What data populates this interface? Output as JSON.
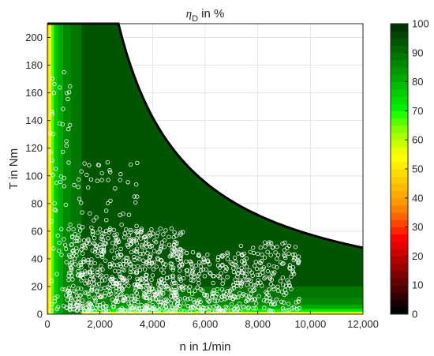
{
  "chart_data": {
    "type": "heatmap",
    "title_main": "η",
    "title_sub": "D",
    "title_rest": " in %",
    "xlabel": "n in 1/min",
    "ylabel": "T in Nm",
    "xlim": [
      0,
      12000
    ],
    "ylim": [
      0,
      210
    ],
    "xticks": [
      0,
      2000,
      4000,
      6000,
      8000,
      10000,
      12000
    ],
    "xtick_labels": [
      "0",
      "2,000",
      "4,000",
      "6,000",
      "8,000",
      "10,000",
      "12,000"
    ],
    "yticks": [
      0,
      20,
      40,
      60,
      80,
      100,
      120,
      140,
      160,
      180,
      200
    ],
    "ytick_labels": [
      "0",
      "20",
      "40",
      "60",
      "80",
      "100",
      "120",
      "140",
      "160",
      "180",
      "200"
    ],
    "grid": true,
    "colorbar": {
      "min": 0,
      "max": 100,
      "ticks": [
        0,
        10,
        20,
        30,
        40,
        50,
        60,
        70,
        80,
        90,
        100
      ],
      "tick_labels": [
        "0",
        "10",
        "20",
        "30",
        "40",
        "50",
        "60",
        "70",
        "80",
        "90",
        "100"
      ],
      "colors": [
        "#000000",
        "#1a0000",
        "#330000",
        "#4d0000",
        "#660000",
        "#800000",
        "#990000",
        "#b30000",
        "#cc0000",
        "#e60000",
        "#ff0000",
        "#ff2200",
        "#ff4400",
        "#ff6600",
        "#ff8000",
        "#ff9900",
        "#ffaa00",
        "#ffbb00",
        "#ffcc00",
        "#ffdd00",
        "#ffee00",
        "#ffff00",
        "#eeff00",
        "#ccff00",
        "#aaff00",
        "#88ff00",
        "#55ff00",
        "#22ff00",
        "#00ee00",
        "#00dd00",
        "#00cc00",
        "#00bb00",
        "#00aa00",
        "#009900",
        "#008800",
        "#007700",
        "#006600",
        "#005500",
        "#004400",
        "#003300"
      ]
    },
    "corner_speed": 2700,
    "max_torque": 210,
    "max_power_limit_end": {
      "n": 12000,
      "T": 48
    },
    "efficiency_bands": [
      {
        "n": [
          0,
          60
        ],
        "eta": 45
      },
      {
        "n": [
          60,
          150
        ],
        "eta": 55
      },
      {
        "n": [
          150,
          250
        ],
        "eta": 65
      },
      {
        "n": [
          250,
          400
        ],
        "eta": 75
      },
      {
        "n": [
          400,
          600
        ],
        "eta": 82
      },
      {
        "n": [
          600,
          900
        ],
        "eta": 86
      },
      {
        "n": [
          900,
          1300
        ],
        "eta": 89
      },
      {
        "n": [
          1300,
          12000
        ],
        "eta": 93
      }
    ],
    "low_torque_bands": [
      {
        "T": [
          0,
          2
        ],
        "eta": 55
      },
      {
        "T": [
          2,
          4
        ],
        "eta": 70
      },
      {
        "T": [
          4,
          7
        ],
        "eta": 80
      },
      {
        "T": [
          7,
          12
        ],
        "eta": 86
      },
      {
        "T": [
          12,
          20
        ],
        "eta": 89
      }
    ],
    "marker_clusters": [
      {
        "n": [
          800,
          5200
        ],
        "T": [
          2,
          62
        ],
        "count": 700
      },
      {
        "n": [
          5200,
          7200
        ],
        "T": [
          2,
          45
        ],
        "count": 180
      },
      {
        "n": [
          7200,
          9600
        ],
        "T": [
          2,
          52
        ],
        "count": 200
      },
      {
        "n": [
          100,
          900
        ],
        "T": [
          2,
          175
        ],
        "count": 70
      },
      {
        "n": [
          1000,
          3500
        ],
        "T": [
          60,
          110
        ],
        "count": 50
      }
    ]
  }
}
